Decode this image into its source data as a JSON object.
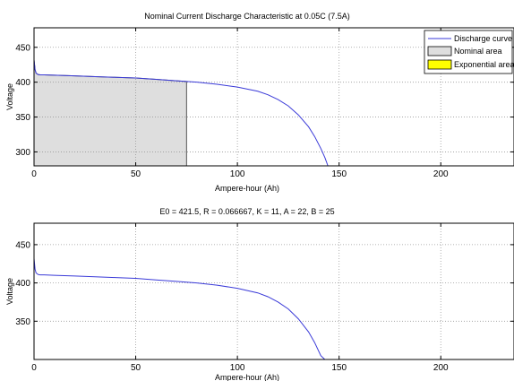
{
  "colors": {
    "curve": "#3a3ad8",
    "nominal_fill": "#dedede",
    "exponential_fill": "#ffff00",
    "grid": "#9a9a9a",
    "axes": "#000000"
  },
  "chart_data": [
    {
      "type": "line",
      "title": "Nominal Current Discharge Characteristic at 0.05C (7.5A)",
      "xlabel": "Ampere-hour (Ah)",
      "ylabel": "Voltage",
      "xlim": [
        0,
        236
      ],
      "ylim": [
        280,
        478
      ],
      "xticks": [
        0,
        50,
        100,
        150,
        200
      ],
      "yticks": [
        300,
        350,
        400,
        450
      ],
      "grid": true,
      "legend_position": "top-right",
      "legend": [
        "Discharge curve",
        "Nominal area",
        "Exponential area"
      ],
      "series": [
        {
          "name": "Discharge curve",
          "x": [
            0,
            0.5,
            1,
            2,
            3,
            5,
            10,
            20,
            30,
            40,
            50,
            60,
            70,
            75,
            80,
            90,
            100,
            110,
            115,
            120,
            125,
            130,
            135,
            138,
            141,
            143,
            144.5
          ],
          "y": [
            432,
            418,
            413,
            411,
            410.5,
            410.5,
            410,
            409,
            408,
            407,
            406,
            404,
            402,
            401,
            400,
            397,
            393,
            387,
            382,
            375,
            366,
            353,
            336,
            322,
            305,
            292,
            280
          ]
        }
      ],
      "nominal_area": {
        "x_end": 75,
        "y_top": 401
      },
      "exponential_area": {
        "x_end": 2
      }
    },
    {
      "type": "line",
      "title": "E0 = 421.5, R = 0.066667, K = 11, A = 22, B = 25",
      "xlabel": "Ampere-hour (Ah)",
      "ylabel": "Voltage",
      "xlim": [
        0,
        236
      ],
      "ylim": [
        300,
        478
      ],
      "xticks": [
        0,
        50,
        100,
        150,
        200
      ],
      "yticks": [
        350,
        400,
        450
      ],
      "grid": true,
      "series": [
        {
          "name": "Discharge curve",
          "x": [
            0,
            0.5,
            1,
            2,
            3,
            5,
            10,
            20,
            30,
            40,
            50,
            60,
            70,
            80,
            90,
            100,
            110,
            115,
            120,
            125,
            130,
            135,
            138,
            141,
            143
          ],
          "y": [
            432,
            418,
            413,
            411,
            410.5,
            410.5,
            410,
            409,
            408,
            407,
            406,
            404,
            402,
            400,
            397,
            393,
            387,
            382,
            375,
            366,
            353,
            336,
            322,
            305,
            300
          ]
        }
      ]
    }
  ]
}
